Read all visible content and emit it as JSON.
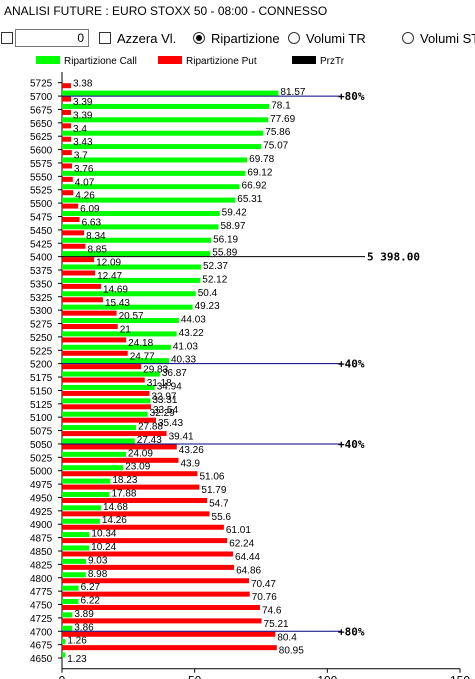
{
  "window": {
    "title": "ANALISI FUTURE : EURO STOXX 50 - 08:00 - CONNESSO"
  },
  "toolbar": {
    "number_value": "0",
    "azzera_label": "Azzera Vl.",
    "ripartizione_label": "Ripartizione",
    "volumi_tr_label": "Volumi TR",
    "volumi_st_label": "Volumi ST",
    "selected_mode": "Ripartizione"
  },
  "colors": {
    "call": "#00ff00",
    "put": "#ff0000",
    "prztr": "#000000",
    "marker_line": "#000080"
  },
  "chart_data": {
    "type": "bar",
    "orientation": "horizontal",
    "legend": [
      "Ripartizione Call",
      "Ripartizione Put",
      "PrzTr"
    ],
    "legend_position": "top",
    "xlim": [
      0,
      150
    ],
    "xticks": [
      "0",
      "50",
      "100",
      "150"
    ],
    "categories": [
      "5725",
      "5700",
      "5675",
      "5650",
      "5625",
      "5600",
      "5575",
      "5550",
      "5525",
      "5500",
      "5475",
      "5450",
      "5425",
      "5400",
      "5375",
      "5350",
      "5325",
      "5300",
      "5275",
      "5250",
      "5225",
      "5200",
      "5175",
      "5150",
      "5125",
      "5100",
      "5075",
      "5050",
      "5025",
      "5000",
      "4975",
      "4950",
      "4925",
      "4900",
      "4875",
      "4850",
      "4825",
      "4800",
      "4775",
      "4750",
      "4725",
      "4700",
      "4675",
      "4650"
    ],
    "series": [
      {
        "name": "Ripartizione Call",
        "values": [
          null,
          81.57,
          78.1,
          77.69,
          75.86,
          75.07,
          69.78,
          69.12,
          66.92,
          65.31,
          59.42,
          58.97,
          56.19,
          55.89,
          52.37,
          52.12,
          50.4,
          49.23,
          44.03,
          43.22,
          41.03,
          40.33,
          36.87,
          34.94,
          33.31,
          32.29,
          27.88,
          27.43,
          24.09,
          23.09,
          18.23,
          17.88,
          14.68,
          14.26,
          10.34,
          10.24,
          9.03,
          8.98,
          6.27,
          6.22,
          3.89,
          3.86,
          1.26,
          1.23
        ]
      },
      {
        "name": "Ripartizione Put",
        "values": [
          3.38,
          3.39,
          3.39,
          3.4,
          3.43,
          3.7,
          3.76,
          4.07,
          4.26,
          6.09,
          6.63,
          8.34,
          8.85,
          12.09,
          12.47,
          14.69,
          15.43,
          20.57,
          21,
          24.18,
          24.77,
          29.83,
          31.18,
          32.97,
          33.54,
          35.43,
          39.41,
          43.26,
          43.9,
          51.06,
          51.79,
          54.7,
          55.6,
          61.01,
          62.24,
          64.44,
          64.86,
          70.47,
          70.76,
          74.6,
          75.21,
          80.4,
          80.95,
          null
        ]
      }
    ],
    "label_order": [
      "put",
      "call",
      "call",
      "call",
      "call",
      "call",
      "call",
      "call",
      "call",
      "call",
      "call",
      "call",
      "call",
      "call",
      "call",
      "call",
      "call",
      "call",
      "call",
      "call",
      "call",
      "call",
      "call",
      "call",
      "call",
      "call",
      "call",
      "call",
      "call",
      "call",
      "call",
      "call",
      "call",
      "call",
      "call",
      "call",
      "call",
      "call",
      "call",
      "call",
      "call",
      "call",
      "call",
      "call"
    ],
    "value_labels": [
      [
        "3.38"
      ],
      [
        "3.39",
        "81.57"
      ],
      [
        "3.39",
        "78.1"
      ],
      [
        "3.4",
        "77.69"
      ],
      [
        "3.43",
        "75.86"
      ],
      [
        "3.7",
        "75.07"
      ],
      [
        "3.76",
        "69.78"
      ],
      [
        "4.07",
        "69.12"
      ],
      [
        "4.26",
        "66.92"
      ],
      [
        "6.09",
        "65.31"
      ],
      [
        "6.63",
        "59.42"
      ],
      [
        "8.34",
        "58.97"
      ],
      [
        "8.85",
        "56.19"
      ],
      [
        "12.09",
        "55.89"
      ],
      [
        "12.47",
        "52.37"
      ],
      [
        "14.69",
        "52.12"
      ],
      [
        "15.43",
        "50.4"
      ],
      [
        "20.57",
        "49.23"
      ],
      [
        "21",
        "44.03"
      ],
      [
        "24.18",
        "43.22"
      ],
      [
        "24.77",
        "41.03"
      ],
      [
        "29.83",
        "40.33"
      ],
      [
        "31.18",
        "36.87"
      ],
      [
        "32.97",
        "34.94"
      ],
      [
        "33.54",
        "33.31"
      ],
      [
        "35.43",
        "32.29"
      ],
      [
        "39.41",
        "27.88"
      ],
      [
        "43.26",
        "27.43"
      ],
      [
        "43.9",
        "24.09"
      ],
      [
        "51.06",
        "23.09"
      ],
      [
        "51.79",
        "18.23"
      ],
      [
        "54.7",
        "17.88"
      ],
      [
        "55.6",
        "14.68"
      ],
      [
        "61.01",
        "14.26"
      ],
      [
        "62.24",
        "10.34"
      ],
      [
        "64.44",
        "10.24"
      ],
      [
        "64.86",
        "9.03"
      ],
      [
        "70.47",
        "8.98"
      ],
      [
        "70.76",
        "6.27"
      ],
      [
        "74.6",
        "6.22"
      ],
      [
        "75.21",
        "3.89"
      ],
      [
        "80.4",
        "3.86"
      ],
      [
        "80.95",
        "1.26"
      ],
      [
        "1.23"
      ]
    ],
    "markers": [
      {
        "strike": "5700",
        "label": "80%"
      },
      {
        "strike": "5400",
        "label": "5 398.00"
      },
      {
        "strike": "5200",
        "label": "40%"
      },
      {
        "strike": "5050",
        "label": "40%"
      },
      {
        "strike": "4700",
        "label": "80%"
      }
    ]
  }
}
